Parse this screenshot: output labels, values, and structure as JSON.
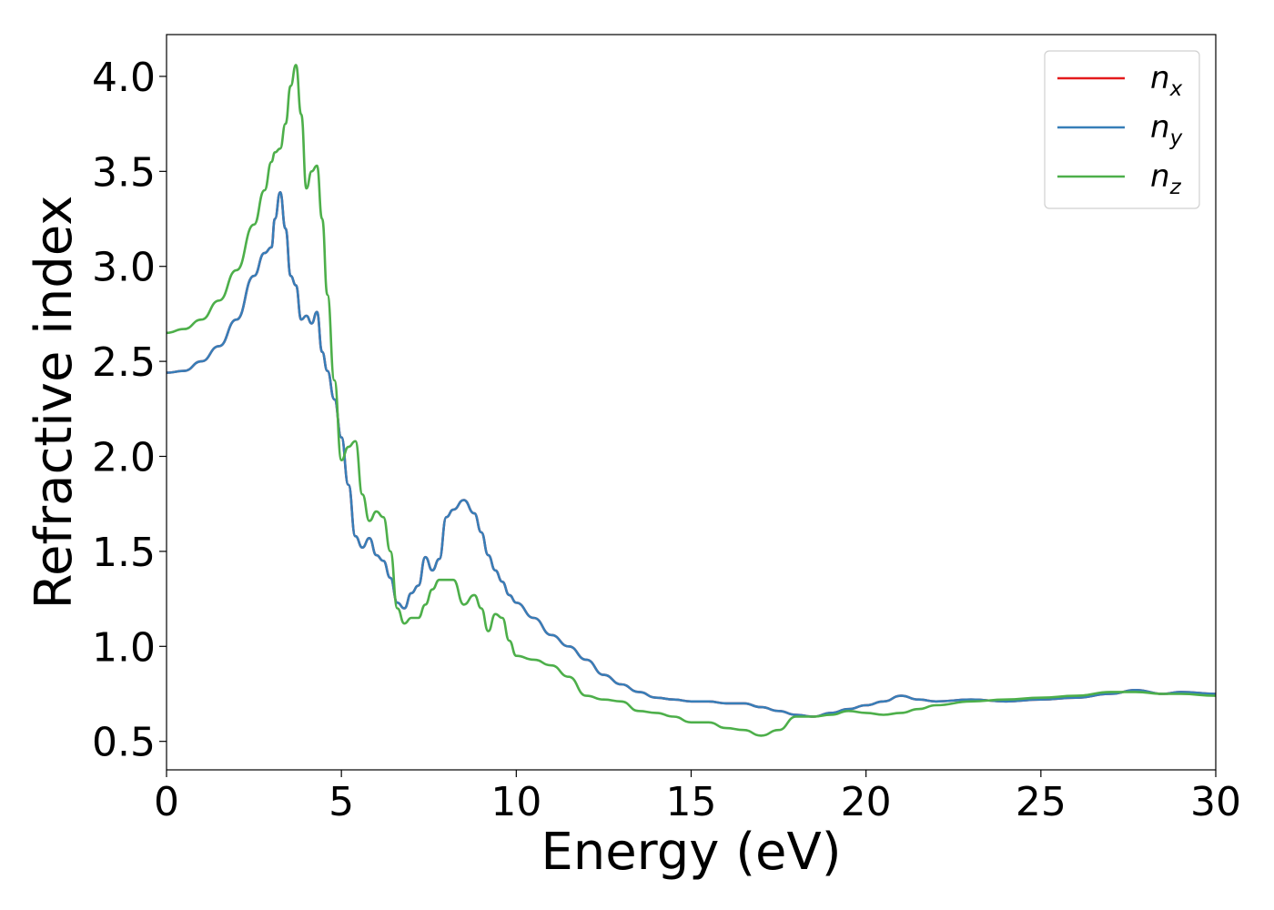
{
  "chart_data": {
    "type": "line",
    "title": "",
    "xlabel": "Energy (eV)",
    "ylabel": "Refractive index",
    "xlim": [
      0,
      30
    ],
    "ylim": [
      0.35,
      4.22
    ],
    "xticks": [
      0,
      5,
      10,
      15,
      20,
      25,
      30
    ],
    "xtick_labels": [
      "0",
      "5",
      "10",
      "15",
      "20",
      "25",
      "30"
    ],
    "yticks": [
      0.5,
      1.0,
      1.5,
      2.0,
      2.5,
      3.0,
      3.5,
      4.0
    ],
    "ytick_labels": [
      "0.5",
      "1.0",
      "1.5",
      "2.0",
      "2.5",
      "3.0",
      "3.5",
      "4.0"
    ],
    "grid": false,
    "legend_position": "top-right",
    "series": [
      {
        "name": "n_x",
        "label_base": "n",
        "label_sub": "x",
        "color": "#e41a1c",
        "x": [
          0,
          0.5,
          1,
          1.5,
          2,
          2.5,
          2.8,
          3.0,
          3.1,
          3.25,
          3.4,
          3.55,
          3.7,
          3.85,
          4.0,
          4.15,
          4.3,
          4.45,
          4.6,
          4.8,
          5.0,
          5.2,
          5.4,
          5.6,
          5.8,
          6.0,
          6.2,
          6.4,
          6.6,
          6.8,
          7.0,
          7.2,
          7.4,
          7.6,
          7.8,
          8.0,
          8.2,
          8.5,
          8.8,
          9.0,
          9.2,
          9.4,
          9.6,
          9.8,
          10.0,
          10.5,
          11.0,
          11.5,
          12.0,
          12.5,
          13.0,
          13.5,
          14.0,
          14.5,
          15.0,
          15.5,
          16.0,
          16.5,
          17.0,
          17.5,
          18.0,
          18.5,
          19.0,
          19.5,
          20.0,
          20.5,
          21.0,
          21.5,
          22.0,
          23.0,
          24.0,
          25.0,
          26.0,
          27.0,
          27.7,
          28.5,
          29.0,
          30.0
        ],
        "values": [
          2.44,
          2.45,
          2.5,
          2.58,
          2.72,
          2.95,
          3.07,
          3.1,
          3.25,
          3.39,
          3.2,
          2.95,
          2.9,
          2.72,
          2.74,
          2.7,
          2.76,
          2.55,
          2.45,
          2.3,
          2.1,
          1.85,
          1.58,
          1.52,
          1.57,
          1.48,
          1.45,
          1.36,
          1.23,
          1.2,
          1.28,
          1.32,
          1.47,
          1.4,
          1.46,
          1.68,
          1.72,
          1.77,
          1.7,
          1.6,
          1.48,
          1.4,
          1.34,
          1.27,
          1.23,
          1.15,
          1.06,
          1.0,
          0.93,
          0.85,
          0.8,
          0.76,
          0.73,
          0.72,
          0.71,
          0.71,
          0.7,
          0.7,
          0.68,
          0.66,
          0.64,
          0.63,
          0.65,
          0.67,
          0.69,
          0.71,
          0.74,
          0.72,
          0.71,
          0.72,
          0.71,
          0.72,
          0.73,
          0.75,
          0.77,
          0.75,
          0.76,
          0.75
        ]
      },
      {
        "name": "n_y",
        "label_base": "n",
        "label_sub": "y",
        "color": "#377eb8",
        "x": [
          0,
          0.5,
          1,
          1.5,
          2,
          2.5,
          2.8,
          3.0,
          3.1,
          3.25,
          3.4,
          3.55,
          3.7,
          3.85,
          4.0,
          4.15,
          4.3,
          4.45,
          4.6,
          4.8,
          5.0,
          5.2,
          5.4,
          5.6,
          5.8,
          6.0,
          6.2,
          6.4,
          6.6,
          6.8,
          7.0,
          7.2,
          7.4,
          7.6,
          7.8,
          8.0,
          8.2,
          8.5,
          8.8,
          9.0,
          9.2,
          9.4,
          9.6,
          9.8,
          10.0,
          10.5,
          11.0,
          11.5,
          12.0,
          12.5,
          13.0,
          13.5,
          14.0,
          14.5,
          15.0,
          15.5,
          16.0,
          16.5,
          17.0,
          17.5,
          18.0,
          18.5,
          19.0,
          19.5,
          20.0,
          20.5,
          21.0,
          21.5,
          22.0,
          23.0,
          24.0,
          25.0,
          26.0,
          27.0,
          27.7,
          28.5,
          29.0,
          30.0
        ],
        "values": [
          2.44,
          2.45,
          2.5,
          2.58,
          2.72,
          2.95,
          3.07,
          3.1,
          3.25,
          3.39,
          3.2,
          2.95,
          2.9,
          2.72,
          2.74,
          2.7,
          2.76,
          2.55,
          2.45,
          2.3,
          2.1,
          1.85,
          1.58,
          1.52,
          1.57,
          1.48,
          1.45,
          1.36,
          1.23,
          1.2,
          1.28,
          1.32,
          1.47,
          1.4,
          1.46,
          1.68,
          1.72,
          1.77,
          1.7,
          1.6,
          1.48,
          1.4,
          1.34,
          1.27,
          1.23,
          1.15,
          1.06,
          1.0,
          0.93,
          0.85,
          0.8,
          0.76,
          0.73,
          0.72,
          0.71,
          0.71,
          0.7,
          0.7,
          0.68,
          0.66,
          0.64,
          0.63,
          0.65,
          0.67,
          0.69,
          0.71,
          0.74,
          0.72,
          0.71,
          0.72,
          0.71,
          0.72,
          0.73,
          0.75,
          0.77,
          0.75,
          0.76,
          0.75
        ]
      },
      {
        "name": "n_z",
        "label_base": "n",
        "label_sub": "z",
        "color": "#4daf4a",
        "x": [
          0,
          0.5,
          1,
          1.5,
          2,
          2.5,
          2.8,
          3.0,
          3.1,
          3.25,
          3.4,
          3.55,
          3.7,
          3.85,
          4.0,
          4.15,
          4.3,
          4.45,
          4.6,
          4.8,
          5.0,
          5.2,
          5.4,
          5.6,
          5.8,
          6.0,
          6.2,
          6.4,
          6.6,
          6.8,
          7.0,
          7.2,
          7.4,
          7.6,
          7.8,
          8.0,
          8.2,
          8.5,
          8.8,
          9.0,
          9.2,
          9.4,
          9.6,
          9.8,
          10.0,
          10.5,
          11.0,
          11.5,
          12.0,
          12.5,
          13.0,
          13.5,
          14.0,
          14.5,
          15.0,
          15.5,
          16.0,
          16.5,
          17.0,
          17.5,
          18.0,
          18.5,
          19.0,
          19.5,
          20.0,
          20.5,
          21.0,
          21.5,
          22.0,
          23.0,
          24.0,
          25.0,
          26.0,
          27.0,
          27.7,
          28.5,
          29.0,
          30.0
        ],
        "values": [
          2.65,
          2.67,
          2.72,
          2.82,
          2.98,
          3.22,
          3.4,
          3.55,
          3.6,
          3.62,
          3.75,
          3.95,
          4.06,
          3.8,
          3.41,
          3.5,
          3.53,
          3.25,
          2.85,
          2.4,
          1.98,
          2.05,
          2.08,
          1.8,
          1.66,
          1.71,
          1.68,
          1.5,
          1.2,
          1.12,
          1.15,
          1.15,
          1.22,
          1.3,
          1.35,
          1.35,
          1.35,
          1.22,
          1.27,
          1.2,
          1.08,
          1.17,
          1.15,
          1.03,
          0.95,
          0.93,
          0.9,
          0.84,
          0.74,
          0.72,
          0.71,
          0.66,
          0.65,
          0.63,
          0.6,
          0.6,
          0.57,
          0.56,
          0.53,
          0.56,
          0.63,
          0.63,
          0.64,
          0.66,
          0.65,
          0.64,
          0.65,
          0.67,
          0.69,
          0.71,
          0.72,
          0.73,
          0.74,
          0.76,
          0.76,
          0.75,
          0.75,
          0.74
        ]
      }
    ]
  }
}
